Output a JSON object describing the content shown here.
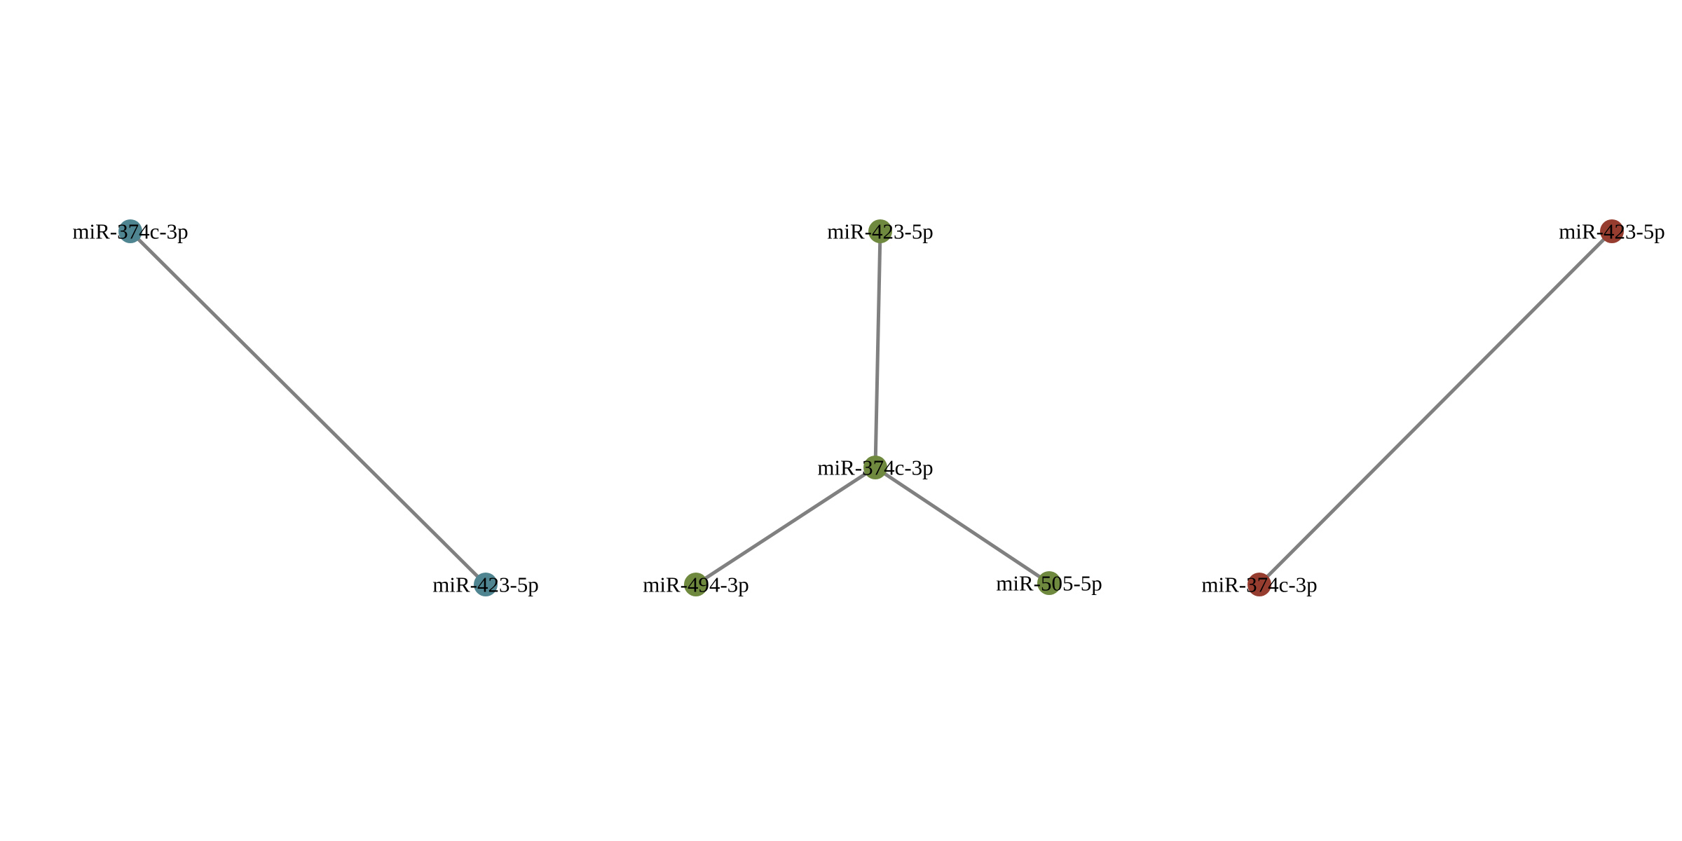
{
  "colors": {
    "edge": "#808080",
    "group_1": "#4f8591",
    "group_2": "#6f8a3f",
    "group_3": "#973d30"
  },
  "groups": [
    {
      "id": "group-1",
      "color": "#4f8591",
      "nodes": [
        {
          "id": "n1",
          "label": "miR-374c-3p"
        },
        {
          "id": "n2",
          "label": "miR-423-5p"
        }
      ],
      "edges": [
        {
          "from": "n1",
          "to": "n2"
        }
      ]
    },
    {
      "id": "group-2",
      "color": "#6f8a3f",
      "nodes": [
        {
          "id": "n3",
          "label": "miR-423-5p"
        },
        {
          "id": "n4",
          "label": "miR-374c-3p"
        },
        {
          "id": "n5",
          "label": "miR-494-3p"
        },
        {
          "id": "n6",
          "label": "miR-505-5p"
        }
      ],
      "edges": [
        {
          "from": "n3",
          "to": "n4"
        },
        {
          "from": "n4",
          "to": "n5"
        },
        {
          "from": "n4",
          "to": "n6"
        }
      ]
    },
    {
      "id": "group-3",
      "color": "#973d30",
      "nodes": [
        {
          "id": "n7",
          "label": "miR-423-5p"
        },
        {
          "id": "n8",
          "label": "miR-374c-3p"
        }
      ],
      "edges": [
        {
          "from": "n7",
          "to": "n8"
        }
      ]
    }
  ]
}
